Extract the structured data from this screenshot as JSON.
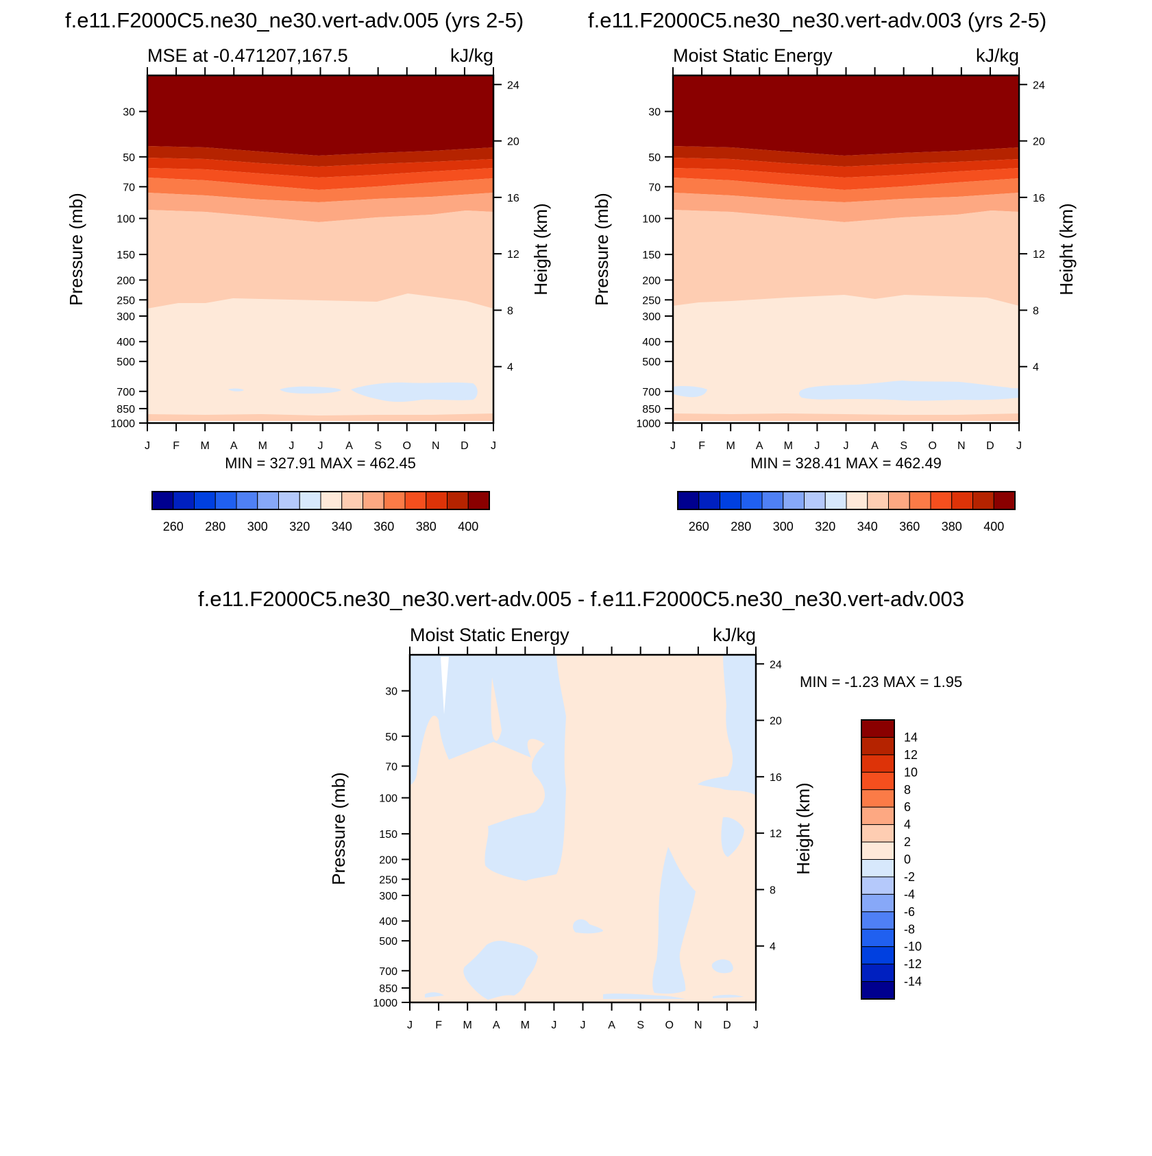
{
  "page": {
    "title_left": "f.e11.F2000C5.ne30_ne30.vert-adv.005 (yrs 2-5)",
    "title_right": "f.e11.F2000C5.ne30_ne30.vert-adv.003 (yrs 2-5)",
    "title_diff": "f.e11.F2000C5.ne30_ne30.vert-adv.005 - f.e11.F2000C5.ne30_ne30.vert-adv.003"
  },
  "chart_data": [
    {
      "type": "contour",
      "left_label": "MSE at -0.471207,167.5",
      "units": "kJ/kg",
      "ylabel": "Pressure (mb)",
      "ylabel_right": "Height (km)",
      "y_ticks": [
        "30",
        "50",
        "70",
        "100",
        "150",
        "200",
        "250",
        "300",
        "400",
        "500",
        "700",
        "850",
        "1000"
      ],
      "height_ticks": [
        "24",
        "20",
        "16",
        "12",
        "8",
        "4"
      ],
      "x_ticks": [
        "J",
        "F",
        "M",
        "A",
        "M",
        "J",
        "J",
        "A",
        "S",
        "O",
        "N",
        "D",
        "J"
      ],
      "scale": "log pressure",
      "minmax": "MIN = 327.91 MAX = 462.45",
      "colorbar": {
        "labels": [
          "260",
          "280",
          "300",
          "320",
          "340",
          "360",
          "380",
          "400"
        ],
        "colors": [
          "#00008f",
          "#0020c0",
          "#0040e0",
          "#2060f0",
          "#4f80f5",
          "#87a8f8",
          "#b5c9fb",
          "#d7e8fc",
          "#fee9d9",
          "#fecdb2",
          "#fda882",
          "#fb7b47",
          "#f54f1e",
          "#dd3308",
          "#b52300",
          "#8a0000"
        ]
      }
    },
    {
      "type": "contour",
      "left_label": "Moist Static Energy",
      "units": "kJ/kg",
      "ylabel": "Pressure (mb)",
      "ylabel_right": "Height (km)",
      "y_ticks": [
        "30",
        "50",
        "70",
        "100",
        "150",
        "200",
        "250",
        "300",
        "400",
        "500",
        "700",
        "850",
        "1000"
      ],
      "height_ticks": [
        "24",
        "20",
        "16",
        "12",
        "8",
        "4"
      ],
      "x_ticks": [
        "J",
        "F",
        "M",
        "A",
        "M",
        "J",
        "J",
        "A",
        "S",
        "O",
        "N",
        "D",
        "J"
      ],
      "scale": "log pressure",
      "minmax": "MIN = 328.41 MAX = 462.49",
      "colorbar": {
        "labels": [
          "260",
          "280",
          "300",
          "320",
          "340",
          "360",
          "380",
          "400"
        ],
        "colors": [
          "#00008f",
          "#0020c0",
          "#0040e0",
          "#2060f0",
          "#4f80f5",
          "#87a8f8",
          "#b5c9fb",
          "#d7e8fc",
          "#fee9d9",
          "#fecdb2",
          "#fda882",
          "#fb7b47",
          "#f54f1e",
          "#dd3308",
          "#b52300",
          "#8a0000"
        ]
      }
    },
    {
      "type": "contour",
      "left_label": "Moist Static Energy",
      "units": "kJ/kg",
      "ylabel": "Pressure (mb)",
      "ylabel_right": "Height (km)",
      "y_ticks": [
        "30",
        "50",
        "70",
        "100",
        "150",
        "200",
        "250",
        "300",
        "400",
        "500",
        "700",
        "850",
        "1000"
      ],
      "height_ticks": [
        "24",
        "20",
        "16",
        "12",
        "8",
        "4"
      ],
      "x_ticks": [
        "J",
        "F",
        "M",
        "A",
        "M",
        "J",
        "J",
        "A",
        "S",
        "O",
        "N",
        "D",
        "J"
      ],
      "scale": "log pressure",
      "minmax": "MIN =  -1.23 MAX =   1.95",
      "colorbar": {
        "labels": [
          "14",
          "12",
          "10",
          "8",
          "6",
          "4",
          "2",
          "0",
          "-2",
          "-4",
          "-6",
          "-8",
          "-10",
          "-12",
          "-14"
        ],
        "colors": [
          "#8a0000",
          "#b52300",
          "#dd3308",
          "#f54f1e",
          "#fb7b47",
          "#fda882",
          "#fecdb2",
          "#fee9d9",
          "#d7e8fc",
          "#b5c9fb",
          "#87a8f8",
          "#4f80f5",
          "#2060f0",
          "#0040e0",
          "#0020c0",
          "#00008f"
        ]
      }
    }
  ]
}
